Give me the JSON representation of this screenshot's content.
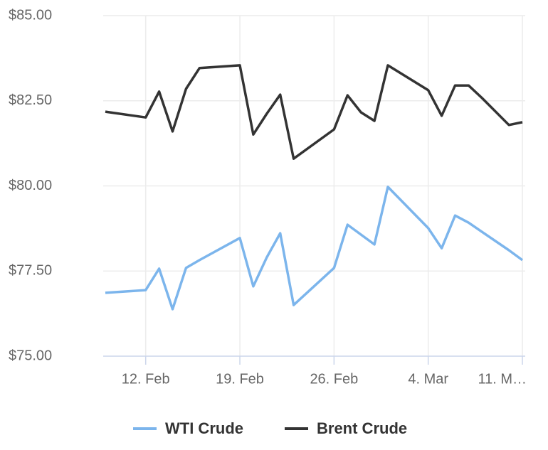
{
  "chart_data": {
    "type": "line",
    "x": [
      "9. Feb",
      "12. Feb",
      "13. Feb",
      "14. Feb",
      "15. Feb",
      "16. Feb",
      "19. Feb",
      "20. Feb",
      "21. Feb",
      "22. Feb",
      "23. Feb",
      "26. Feb",
      "27. Feb",
      "28. Feb",
      "29. Feb",
      "1. Mar",
      "4. Mar",
      "5. Mar",
      "6. Mar",
      "7. Mar",
      "8. Mar",
      "10. Mar",
      "11. Mar"
    ],
    "series": [
      {
        "name": "WTI Crude",
        "color": "#7cb5ec",
        "values": [
          76.86,
          76.94,
          77.57,
          76.38,
          77.59,
          77.82,
          78.47,
          77.05,
          77.9,
          78.61,
          76.5,
          77.59,
          78.86,
          78.57,
          78.28,
          79.97,
          78.76,
          78.17,
          79.13,
          78.92,
          78.65,
          78.11,
          77.82
        ]
      },
      {
        "name": "Brent Crude",
        "color": "#333333",
        "values": [
          82.18,
          82.01,
          82.77,
          81.6,
          82.85,
          83.46,
          83.54,
          81.51,
          82.12,
          82.68,
          80.8,
          81.66,
          82.66,
          82.16,
          81.91,
          83.54,
          82.81,
          82.06,
          82.95,
          82.95,
          82.58,
          81.79,
          81.87
        ]
      }
    ],
    "xlim": [
      "9. Feb",
      "11. Mar"
    ],
    "xticks": [
      "12. Feb",
      "19. Feb",
      "26. Feb",
      "4. Mar",
      {
        "value": "11. Mar",
        "label": "11. M…"
      }
    ],
    "ylim": [
      75,
      85
    ],
    "yticks": [
      {
        "value": 75,
        "label": "$75.00"
      },
      {
        "value": 77.5,
        "label": "$77.50"
      },
      {
        "value": 80,
        "label": "$80.00"
      },
      {
        "value": 82.5,
        "label": "$82.50"
      },
      {
        "value": 85,
        "label": "$85.00"
      }
    ],
    "grid": true,
    "legend": "bottom"
  }
}
